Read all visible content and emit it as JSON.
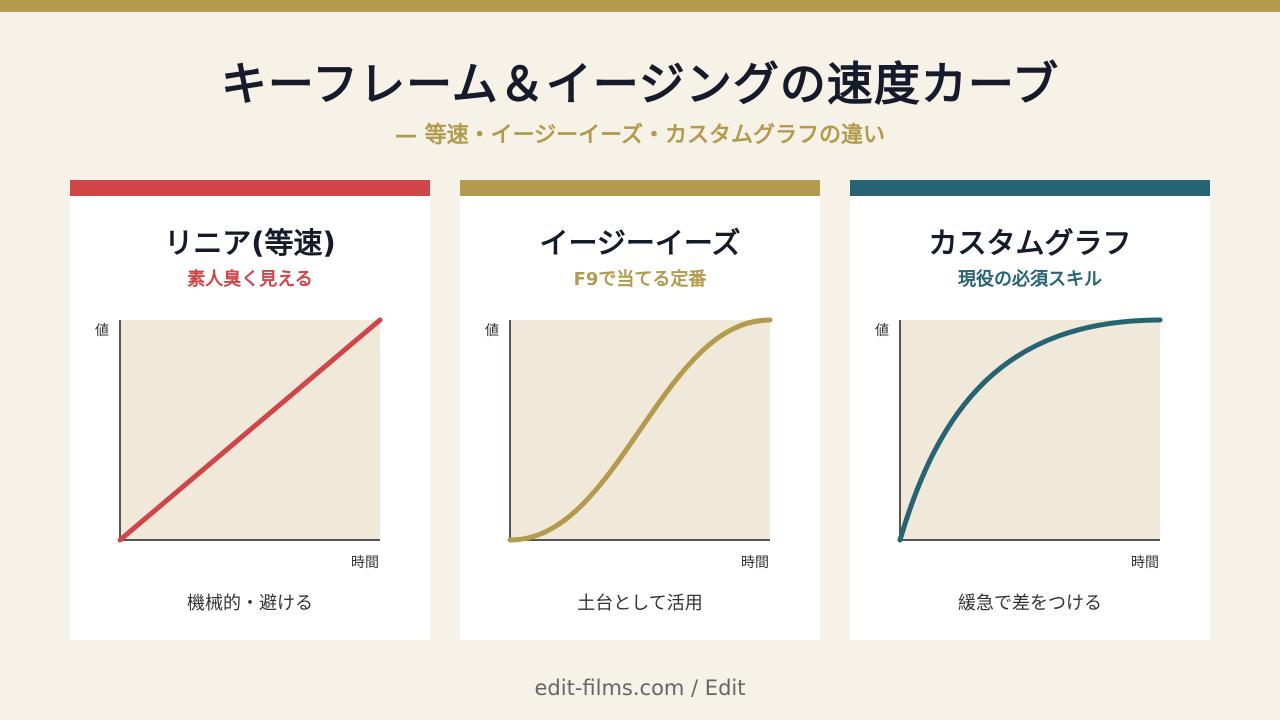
{
  "header": {
    "title": "キーフレーム＆イージングの速度カーブ",
    "subtitle": "— 等速・イージーイーズ・カスタムグラフの違い"
  },
  "colors": {
    "top_bar": "#b39b4d",
    "background": "#f6f2e7",
    "plot_fill": "#f0e8d8"
  },
  "cards": [
    {
      "title": "リニア(等速)",
      "subtitle": "素人臭く見える",
      "accent": "#d04548",
      "y_axis_label": "値",
      "x_axis_label": "時間",
      "description": "機械的・避ける",
      "curve": "linear"
    },
    {
      "title": "イージーイーズ",
      "subtitle": "F9で当てる定番",
      "accent": "#b39b4d",
      "y_axis_label": "値",
      "x_axis_label": "時間",
      "description": "土台として活用",
      "curve": "ease-in-out"
    },
    {
      "title": "カスタムグラフ",
      "subtitle": "現役の必須スキル",
      "accent": "#266474",
      "y_axis_label": "値",
      "x_axis_label": "時間",
      "description": "緩急で差をつける",
      "curve": "ease-out"
    }
  ],
  "footer": {
    "text": "edit-films.com  /  Edit"
  }
}
